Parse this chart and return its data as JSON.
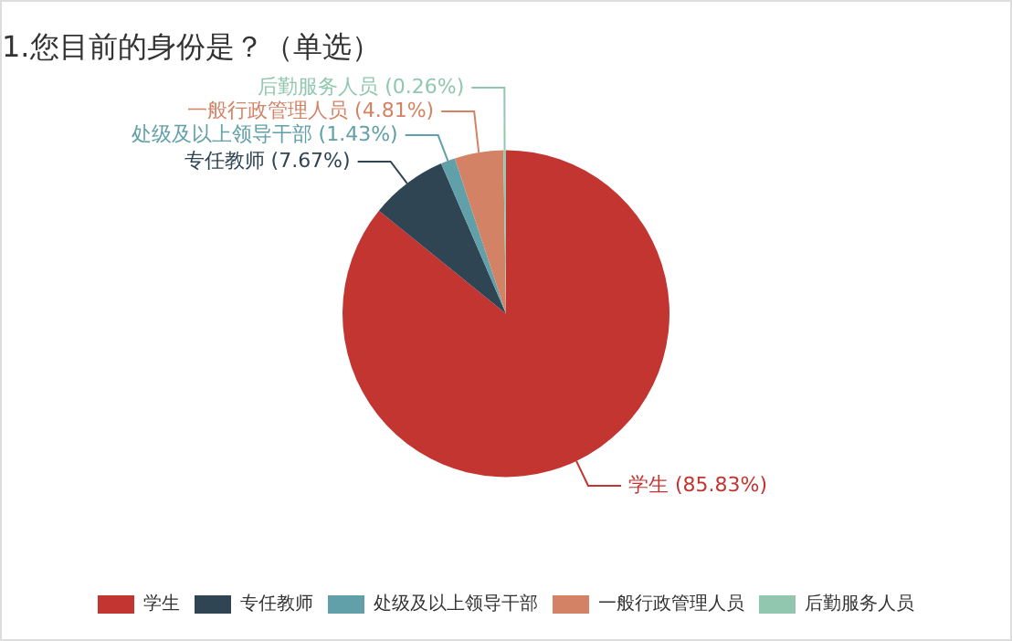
{
  "chart_data": {
    "type": "pie",
    "title": "1.您目前的身份是？（单选）",
    "categories": [
      "学生",
      "专任教师",
      "处级及以上领导干部",
      "一般行政管理人员",
      "后勤服务人员"
    ],
    "values": [
      85.83,
      7.67,
      1.43,
      4.81,
      0.26
    ],
    "colors": [
      "#c23531",
      "#2f4554",
      "#61a0a8",
      "#d48265",
      "#91c7ae"
    ],
    "value_labels": [
      "(85.83%)",
      "(7.67%)",
      "(1.43%)",
      "(4.81%)",
      "(0.26%)"
    ],
    "legend": "bottom"
  }
}
